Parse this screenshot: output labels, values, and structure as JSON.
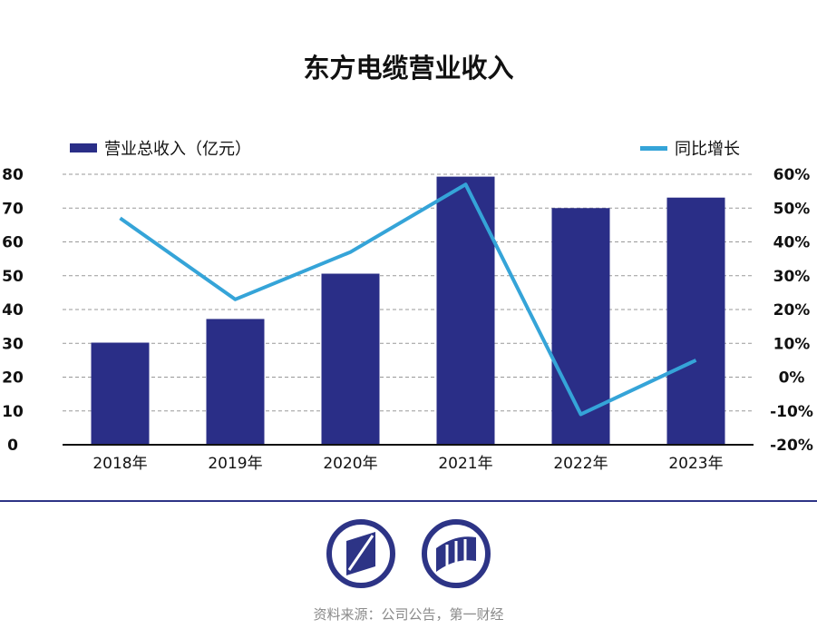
{
  "title": "东方电缆营业收入",
  "source": "资料来源：公司公告，第一财经",
  "colors": {
    "bar": "#2a2e87",
    "line": "#35a4d8",
    "axis": "#111111",
    "grid": "#999999",
    "brand": "#2d3486"
  },
  "chart_data": {
    "type": "bar",
    "title": "东方电缆营业收入",
    "categories": [
      "2018年",
      "2019年",
      "2020年",
      "2021年",
      "2022年",
      "2023年"
    ],
    "series": [
      {
        "name": "营业总收入（亿元）",
        "type": "bar",
        "axis": "left",
        "values": [
          30.2,
          37.2,
          50.6,
          79.3,
          70.0,
          73.1
        ]
      },
      {
        "name": "同比增长",
        "type": "line",
        "axis": "right",
        "values": [
          0.47,
          0.23,
          0.37,
          0.57,
          -0.11,
          0.05
        ]
      }
    ],
    "y_left": {
      "ylim": [
        0,
        80
      ],
      "ticks": [
        "0",
        "10",
        "20",
        "30",
        "40",
        "50",
        "60",
        "70",
        "80"
      ]
    },
    "y_right": {
      "ylim": [
        -0.2,
        0.6
      ],
      "ticks": [
        "-20%",
        "-10%",
        "0%",
        "10%",
        "20%",
        "30%",
        "40%",
        "50%",
        "60%"
      ]
    },
    "grid": true,
    "legend": {
      "left": "营业总收入（亿元）",
      "right": "同比增长",
      "placement": "top"
    }
  }
}
